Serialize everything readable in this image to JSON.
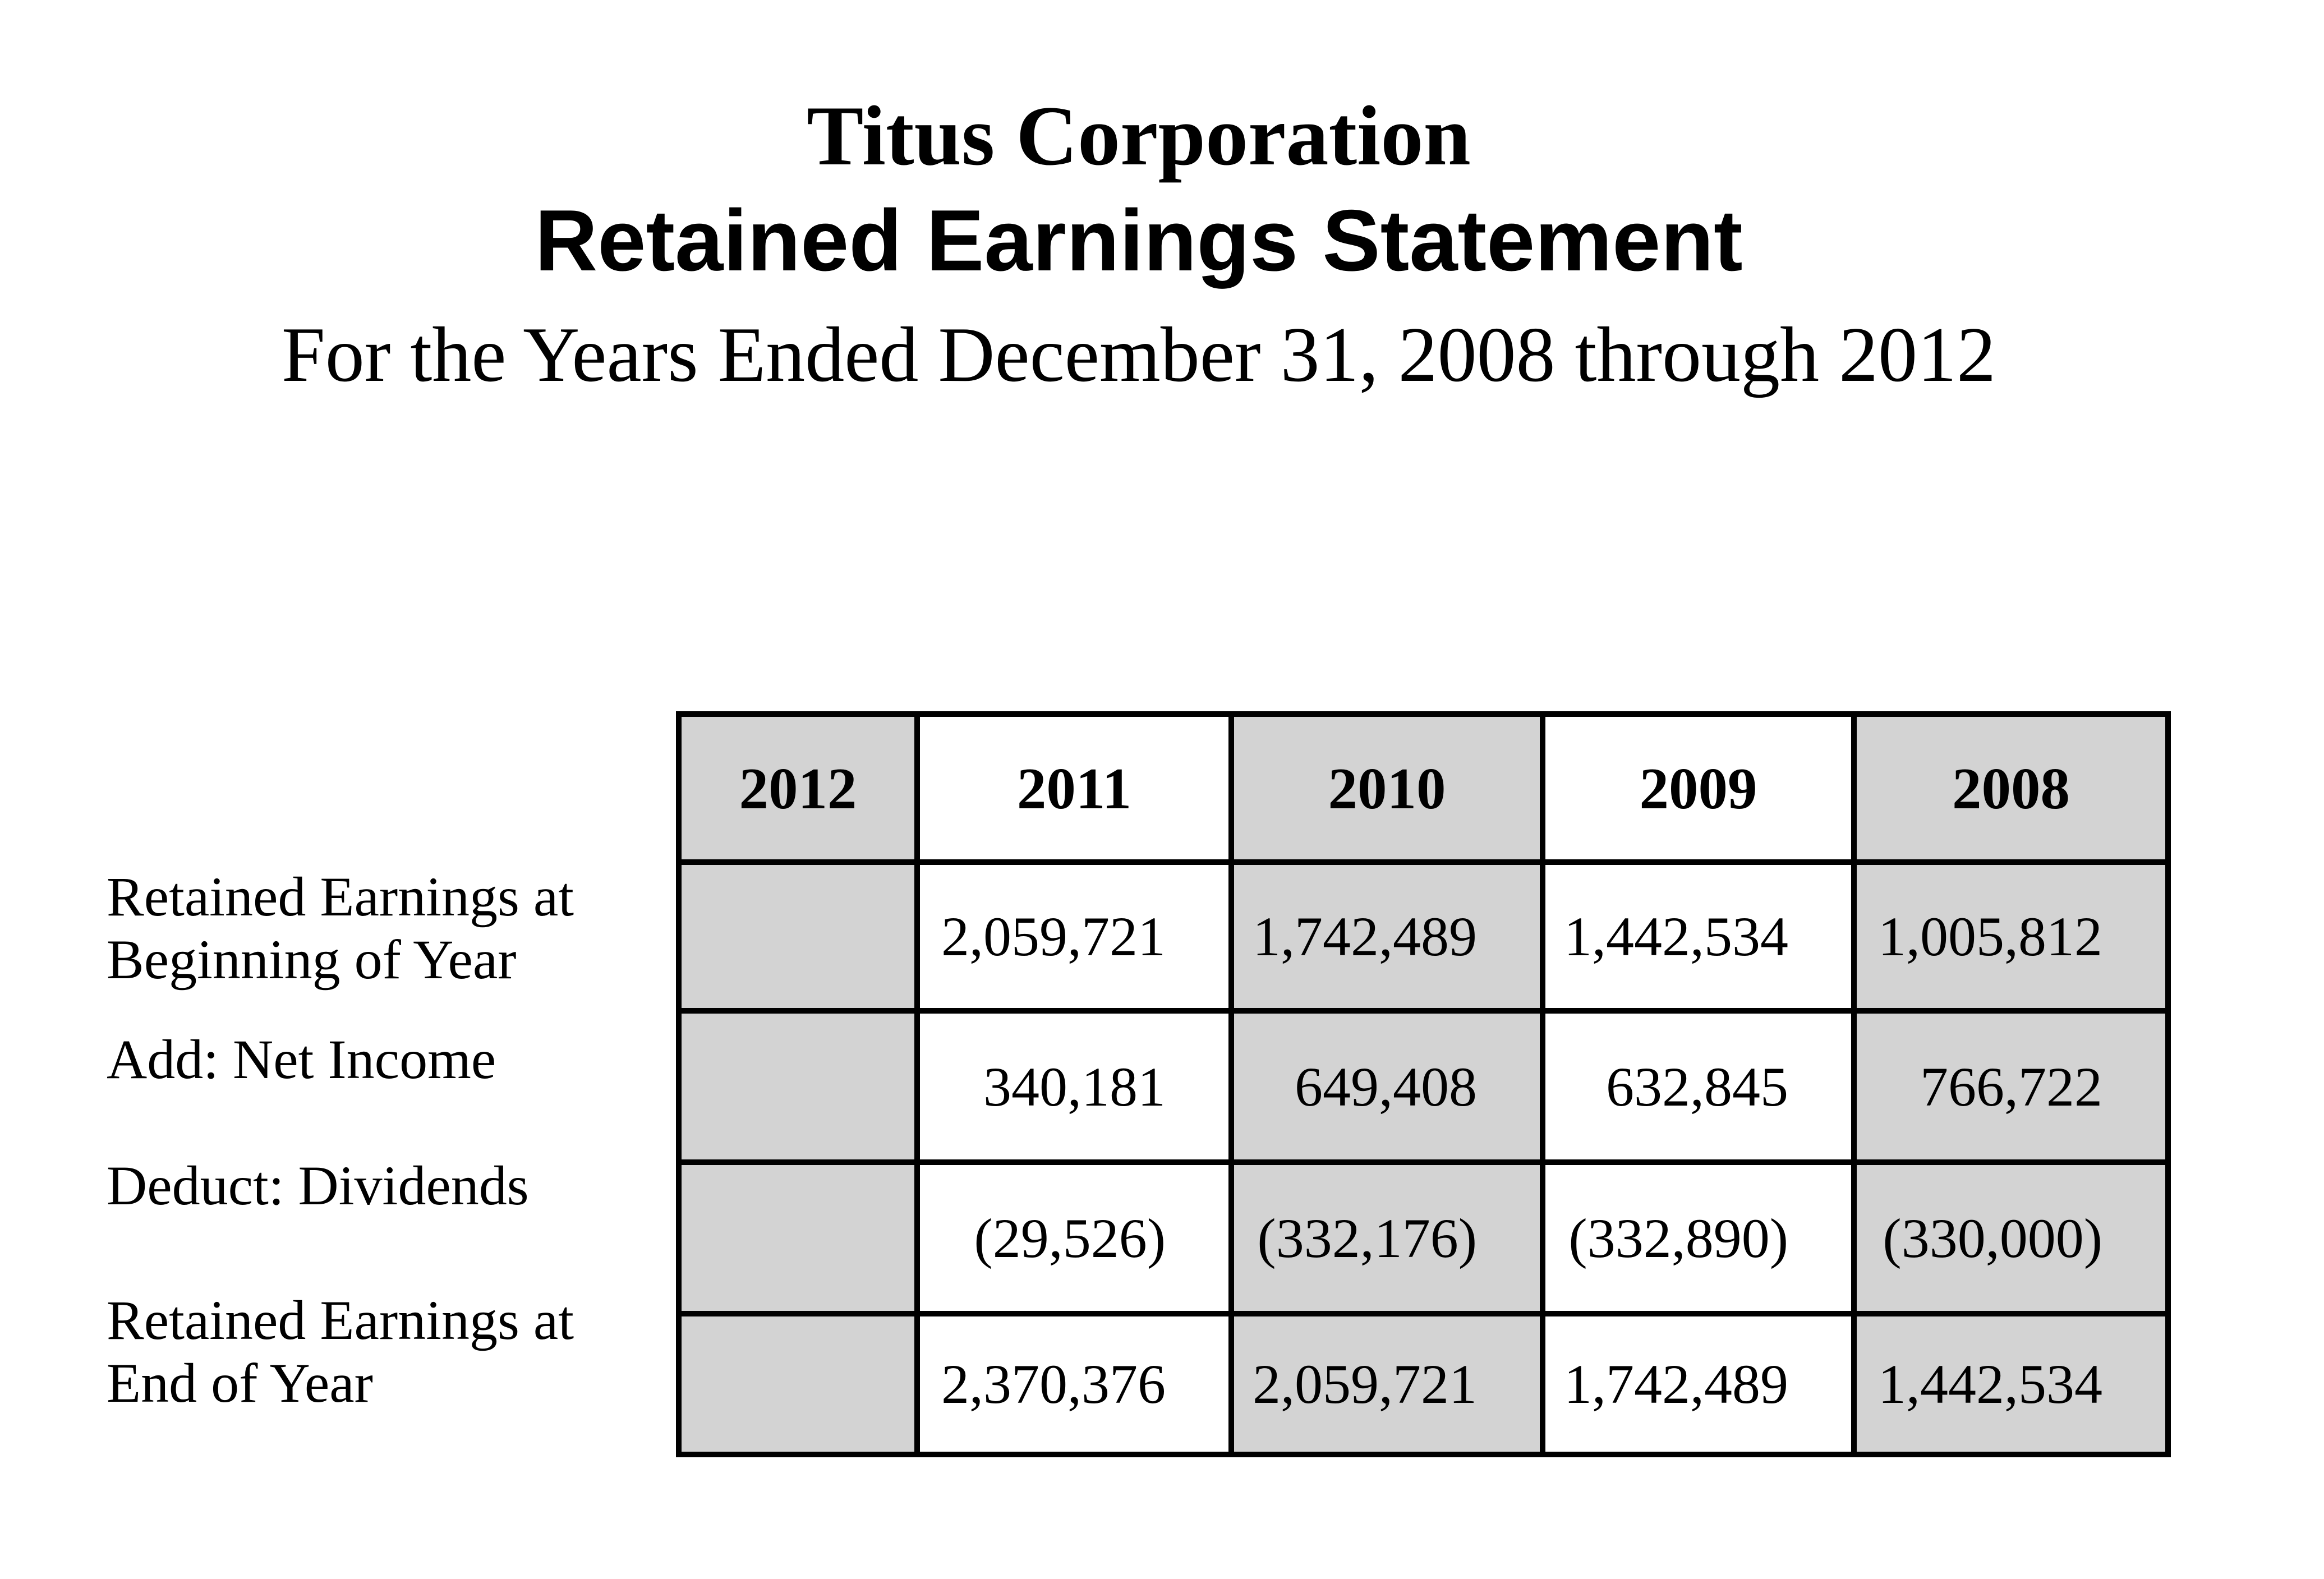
{
  "header": {
    "company": "Titus Corporation",
    "statement_title": "Retained Earnings Statement",
    "period": "For the Years Ended December 31, 2008 through 2012"
  },
  "table": {
    "year_columns": [
      "2012",
      "2011",
      "2010",
      "2009",
      "2008"
    ],
    "shaded_years": [
      "2012",
      "2010",
      "2008"
    ],
    "rows": [
      {
        "label": "Retained Earnings at Beginning of Year",
        "label_lines": [
          "Retained Earnings at",
          "Beginning of Year"
        ],
        "values": [
          "",
          "2,059,721",
          "1,742,489",
          "1,442,534",
          "1,005,812"
        ]
      },
      {
        "label": "Add: Net Income",
        "label_lines": [
          "Add: Net Income"
        ],
        "values": [
          "",
          "340,181",
          "649,408",
          "632,845",
          "766,722"
        ]
      },
      {
        "label": "Deduct: Dividends",
        "label_lines": [
          "Deduct: Dividends"
        ],
        "values": [
          "",
          "(29,526)",
          "(332,176)",
          "(332,890)",
          "(330,000)"
        ]
      },
      {
        "label": "Retained Earnings at End of Year",
        "label_lines": [
          "Retained Earnings at",
          "End of Year"
        ],
        "values": [
          "",
          "2,370,376",
          "2,059,721",
          "1,742,489",
          "1,442,534"
        ]
      }
    ],
    "colors": {
      "shaded_cell": "#d3d3d3",
      "border": "#000000",
      "background": "#ffffff",
      "text": "#000000"
    }
  }
}
